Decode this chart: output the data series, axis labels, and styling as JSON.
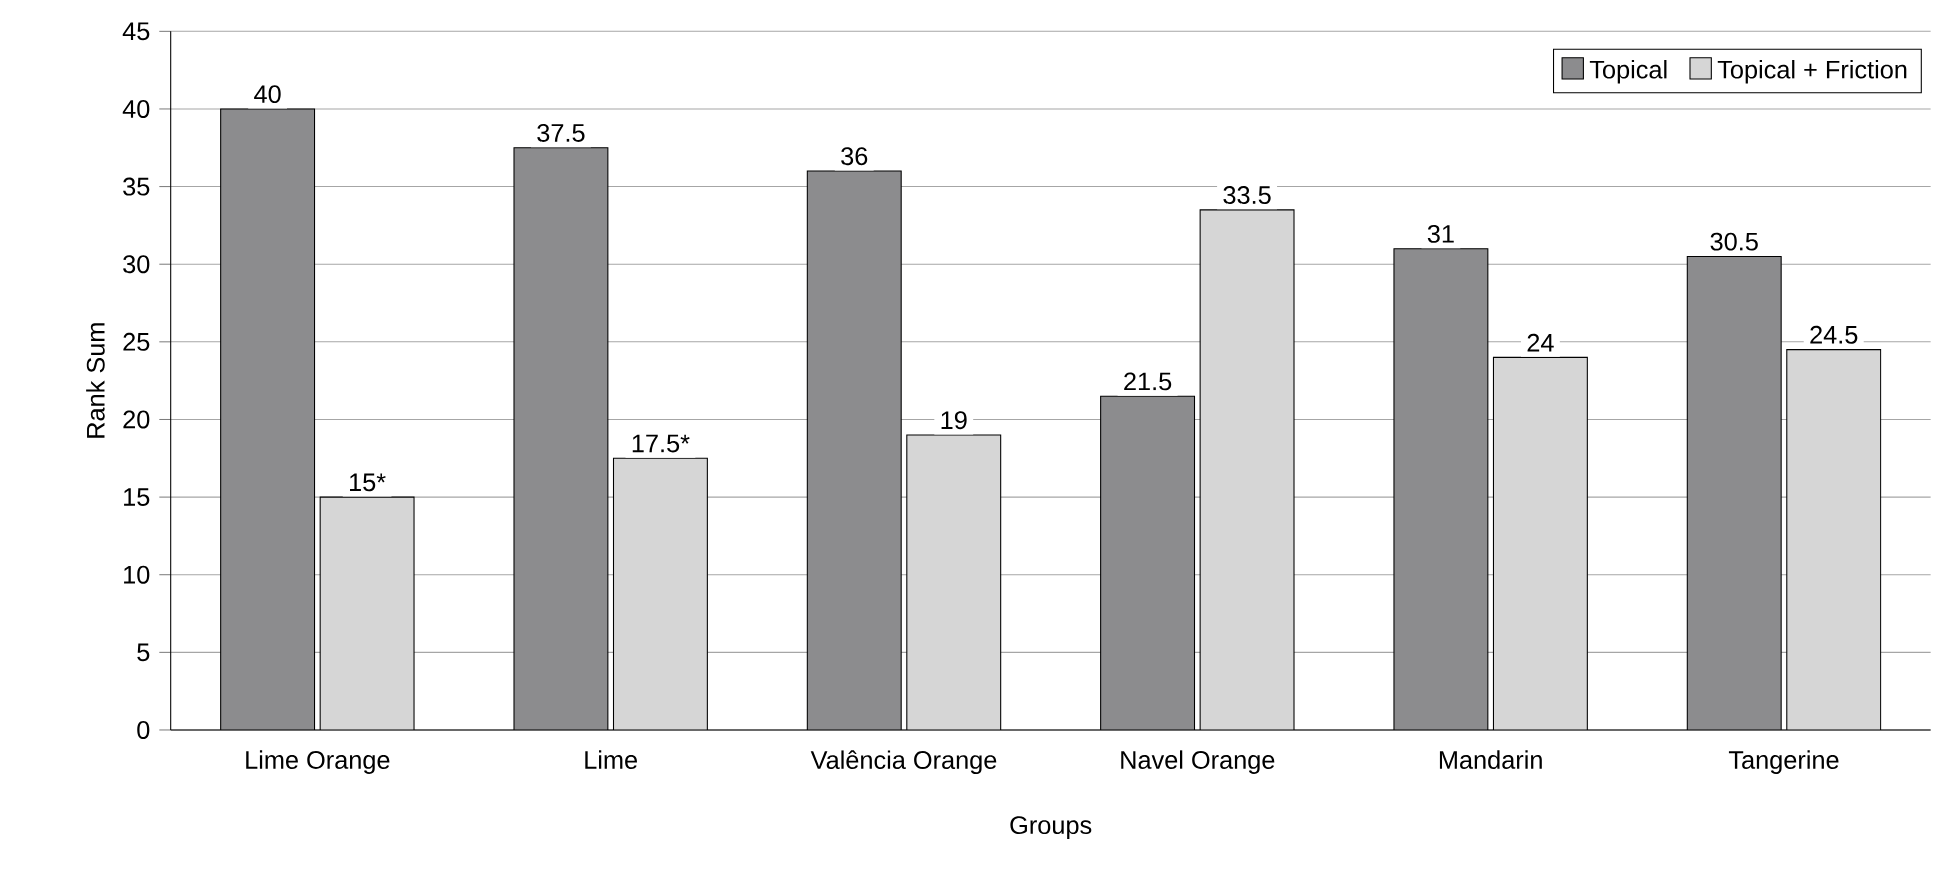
{
  "chart_data": {
    "type": "bar",
    "xlabel": "Groups",
    "ylabel": "Rank Sum",
    "categories": [
      "Lime Orange",
      "Lime",
      "Valência Orange",
      "Navel Orange",
      "Mandarin",
      "Tangerine"
    ],
    "series": [
      {
        "name": "Topical",
        "color": "#8c8c8e",
        "values": [
          40,
          37.5,
          36,
          21.5,
          31,
          30.5
        ],
        "value_labels": [
          "40",
          "37.5",
          "36",
          "21.5",
          "31",
          "30.5"
        ]
      },
      {
        "name": "Topical + Friction",
        "color": "#d6d6d6",
        "values": [
          15,
          17.5,
          19,
          33.5,
          24,
          24.5
        ],
        "value_labels": [
          "15*",
          "17.5*",
          "19",
          "33.5",
          "24",
          "24.5"
        ]
      }
    ],
    "ylim": [
      0,
      45
    ],
    "yticks": [
      0,
      5,
      10,
      15,
      20,
      25,
      30,
      35,
      40,
      45
    ],
    "grid": "y",
    "legend": "top right"
  }
}
